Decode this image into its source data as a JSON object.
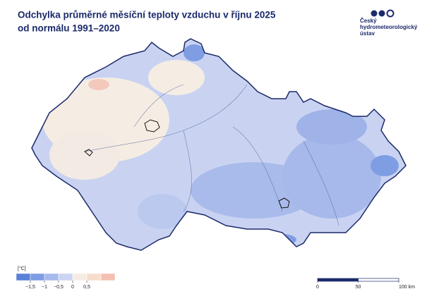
{
  "header": {
    "title": [
      "Odchylka průměrné měsíční teploty vzduchu v říjnu 2025",
      "od normálu 1991–2020"
    ]
  },
  "logo": {
    "text": [
      "Český",
      "hydrometeorologický",
      "ústav"
    ]
  },
  "legend": {
    "unit": "[°C]",
    "colors": [
      "#5b80d9",
      "#7f9de2",
      "#a7b9eb",
      "#cbd5f2",
      "#f5ede3",
      "#f8dccb",
      "#f3c0b2"
    ],
    "ticks": [
      {
        "value": -1.5,
        "label": "−1,5"
      },
      {
        "value": -1,
        "label": "−1"
      },
      {
        "value": -0.5,
        "label": "−0,5"
      },
      0,
      {
        "value": 0.5,
        "label": "0,5"
      }
    ]
  },
  "scale_bar": {
    "ticks": [
      0,
      50,
      {
        "value": 100,
        "label": "100 km"
      }
    ]
  }
}
